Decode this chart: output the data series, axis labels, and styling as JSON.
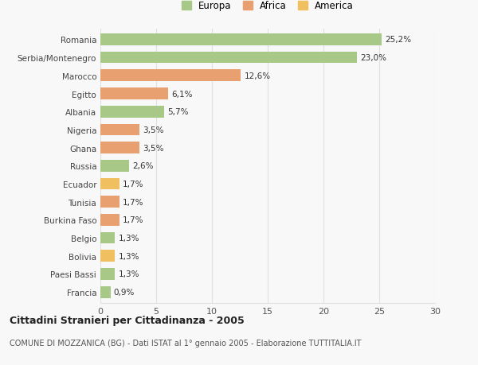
{
  "countries": [
    "Francia",
    "Paesi Bassi",
    "Bolivia",
    "Belgio",
    "Burkina Faso",
    "Tunisia",
    "Ecuador",
    "Russia",
    "Ghana",
    "Nigeria",
    "Albania",
    "Egitto",
    "Marocco",
    "Serbia/Montenegro",
    "Romania"
  ],
  "values": [
    0.9,
    1.3,
    1.3,
    1.3,
    1.7,
    1.7,
    1.7,
    2.6,
    3.5,
    3.5,
    5.7,
    6.1,
    12.6,
    23.0,
    25.2
  ],
  "labels": [
    "0,9%",
    "1,3%",
    "1,3%",
    "1,3%",
    "1,7%",
    "1,7%",
    "1,7%",
    "2,6%",
    "3,5%",
    "3,5%",
    "5,7%",
    "6,1%",
    "12,6%",
    "23,0%",
    "25,2%"
  ],
  "colors": [
    "#a8c888",
    "#a8c888",
    "#f0c060",
    "#a8c888",
    "#e8a070",
    "#e8a070",
    "#f0c060",
    "#a8c888",
    "#e8a070",
    "#e8a070",
    "#a8c888",
    "#e8a070",
    "#e8a070",
    "#a8c888",
    "#a8c888"
  ],
  "legend_labels": [
    "Europa",
    "Africa",
    "America"
  ],
  "legend_colors": [
    "#a8c888",
    "#e8a070",
    "#f0c060"
  ],
  "title": "Cittadini Stranieri per Cittadinanza - 2005",
  "subtitle": "COMUNE DI MOZZANICA (BG) - Dati ISTAT al 1° gennaio 2005 - Elaborazione TUTTITALIA.IT",
  "xlim": [
    0,
    30
  ],
  "xticks": [
    0,
    5,
    10,
    15,
    20,
    25,
    30
  ],
  "background_color": "#f8f8f8",
  "grid_color": "#e0e0e0",
  "bar_height": 0.65
}
